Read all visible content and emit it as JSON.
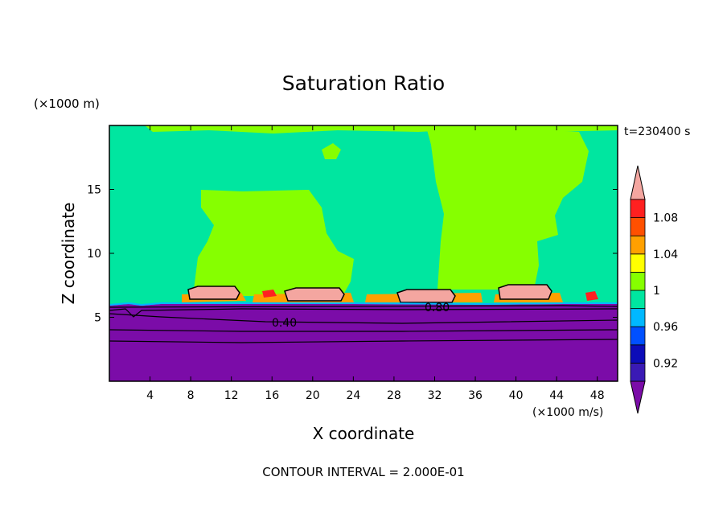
{
  "chart_data": {
    "type": "heatmap",
    "title": "Saturation Ratio",
    "xlabel": "X coordinate",
    "ylabel": "Z coordinate",
    "x_unit": "(×1000 m/s)",
    "y_unit": "(×1000 m)",
    "time_label": "t=230400 s",
    "footer": "CONTOUR INTERVAL = 2.000E-01",
    "xlim": [
      0,
      50
    ],
    "ylim": [
      0,
      20
    ],
    "x_ticks": [
      4,
      8,
      12,
      16,
      20,
      24,
      28,
      32,
      36,
      40,
      44,
      48
    ],
    "y_ticks": [
      5,
      10,
      15
    ],
    "colorbar": {
      "bins": [
        {
          "color": "#7b0ca8",
          "range": "<0.90"
        },
        {
          "color": "#3a1ab5",
          "range": "0.90-0.92"
        },
        {
          "color": "#0c0cb8",
          "range": "0.92-0.94"
        },
        {
          "color": "#0050ff",
          "range": "0.94-0.96"
        },
        {
          "color": "#00b8ff",
          "range": "0.96-0.98"
        },
        {
          "color": "#00e6a0",
          "range": "0.98-1.00"
        },
        {
          "color": "#86ff00",
          "range": "1.00-1.02"
        },
        {
          "color": "#ffff00",
          "range": "1.02-1.04"
        },
        {
          "color": "#ffa000",
          "range": "1.04-1.06"
        },
        {
          "color": "#ff5000",
          "range": "1.06-1.08"
        },
        {
          "color": "#ff2020",
          "range": "1.08-1.10"
        },
        {
          "color": "#f4a6a0",
          "range": ">1.10"
        }
      ],
      "labels": [
        "0.92",
        "0.96",
        "1",
        "1.04",
        "1.08"
      ]
    },
    "contour_labels": [
      "0.40",
      "0.80"
    ],
    "regions": {
      "background_value": 0.99,
      "lower_layer_value": 0.2,
      "lower_layer_top_z": 6,
      "supersaturated_patches_x": [
        [
          8,
          14
        ],
        [
          15,
          23
        ],
        [
          25,
          35
        ],
        [
          38,
          43
        ]
      ]
    }
  }
}
